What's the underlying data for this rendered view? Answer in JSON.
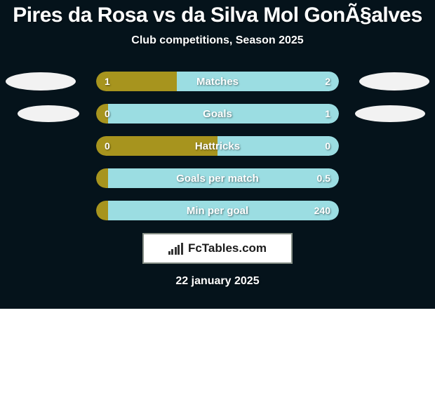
{
  "colors": {
    "background": "#05131b",
    "text": "#ffffff",
    "left": "#a7941e",
    "right": "#9bdde2",
    "photo_bg": "#f2f2f2",
    "logo_bg": "#ffffff",
    "logo_border": "#848d84",
    "logo_text": "#1b1b1b",
    "logo_bars": "#333333"
  },
  "title": "Pires da Rosa vs da Silva Mol GonÃ§alves",
  "subtitle": "Club competitions, Season 2025",
  "rows": [
    {
      "label": "Matches",
      "left_val": "1",
      "right_val": "2",
      "left_pct": 33.3,
      "right_pct": 66.7,
      "photo_left": true,
      "photo_right": true
    },
    {
      "label": "Goals",
      "left_val": "0",
      "right_val": "1",
      "left_pct": 5,
      "right_pct": 95,
      "photo_left": true,
      "photo_right": true
    },
    {
      "label": "Hattricks",
      "left_val": "0",
      "right_val": "0",
      "left_pct": 50,
      "right_pct": 50,
      "photo_left": false,
      "photo_right": false
    },
    {
      "label": "Goals per match",
      "left_val": "",
      "right_val": "0.5",
      "left_pct": 5,
      "right_pct": 95,
      "photo_left": false,
      "photo_right": false
    },
    {
      "label": "Min per goal",
      "left_val": "",
      "right_val": "240",
      "left_pct": 5,
      "right_pct": 95,
      "photo_left": false,
      "photo_right": false
    }
  ],
  "logo_text": "FcTables.com",
  "date": "22 january 2025"
}
